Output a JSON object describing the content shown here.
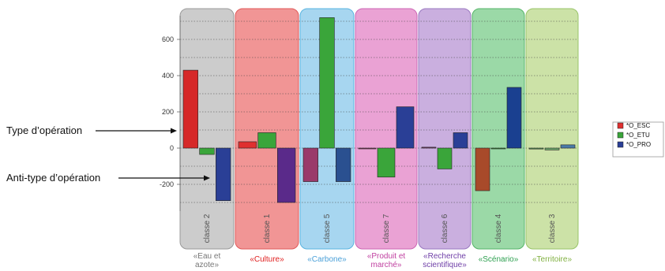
{
  "chart_data": {
    "type": "bar",
    "title": "",
    "xlabel": "",
    "ylabel": "",
    "ylim": [
      -400,
      750
    ],
    "y_ticks": [
      600,
      400,
      200,
      0,
      -200
    ],
    "grid": true,
    "legend_position": "right",
    "series": [
      {
        "name": "*O_ESC",
        "color": "#e03030"
      },
      {
        "name": "*O_ETU",
        "color": "#3aa53a"
      },
      {
        "name": "*O_PRO",
        "color": "#2a3f96"
      }
    ],
    "groups": [
      {
        "class_label": "classe 2",
        "theme": "«Eau et azote»",
        "band_color": "#c8c8c8",
        "band_border": "#9a9a9a",
        "theme_color": "#777777",
        "values": [
          430,
          -35,
          -290
        ],
        "colors": [
          "#d62828",
          "#3aa53a",
          "#2a3f96"
        ]
      },
      {
        "class_label": "classe 1",
        "theme": "«Culture»",
        "band_color": "#f08c8c",
        "band_border": "#e05a5a",
        "theme_color": "#e02020",
        "values": [
          35,
          85,
          -300
        ],
        "colors": [
          "#e03030",
          "#3aa53a",
          "#5a2a8a"
        ]
      },
      {
        "class_label": "classe 5",
        "theme": "«Carbone»",
        "band_color": "#9fd3ef",
        "band_border": "#5ab4e0",
        "theme_color": "#4aa0d8",
        "values": [
          -185,
          720,
          -185
        ],
        "colors": [
          "#9a3a6a",
          "#3aa53a",
          "#2a5090"
        ]
      },
      {
        "class_label": "classe 7",
        "theme": "«Produit et marché»",
        "band_color": "#e89ad0",
        "band_border": "#cc66b4",
        "theme_color": "#c040a0",
        "values": [
          0,
          -160,
          228
        ],
        "colors": [
          "#9a3a6a",
          "#3aa53a",
          "#2a3f96"
        ]
      },
      {
        "class_label": "classe 6",
        "theme": "«Recherche scientifique»",
        "band_color": "#c6a8dc",
        "band_border": "#9a78c0",
        "theme_color": "#7040a8",
        "values": [
          5,
          -115,
          85
        ],
        "colors": [
          "#7a3a6a",
          "#3aa53a",
          "#2a3f96"
        ]
      },
      {
        "class_label": "classe 4",
        "theme": "«Scénario»",
        "band_color": "#92d6a0",
        "band_border": "#55b468",
        "theme_color": "#2ea050",
        "values": [
          -235,
          0,
          335
        ],
        "colors": [
          "#a84a2a",
          "#3aa53a",
          "#1a4090"
        ]
      },
      {
        "class_label": "classe 3",
        "theme": "«Territoire»",
        "band_color": "#c8e0a0",
        "band_border": "#98c468",
        "theme_color": "#80b040",
        "values": [
          -5,
          -10,
          18
        ],
        "colors": [
          "#5a9a5a",
          "#6aa56a",
          "#4a7aa8"
        ]
      }
    ]
  },
  "annotations": {
    "type_label": "Type d’opération",
    "anti_label": "Anti-type d’opération"
  }
}
